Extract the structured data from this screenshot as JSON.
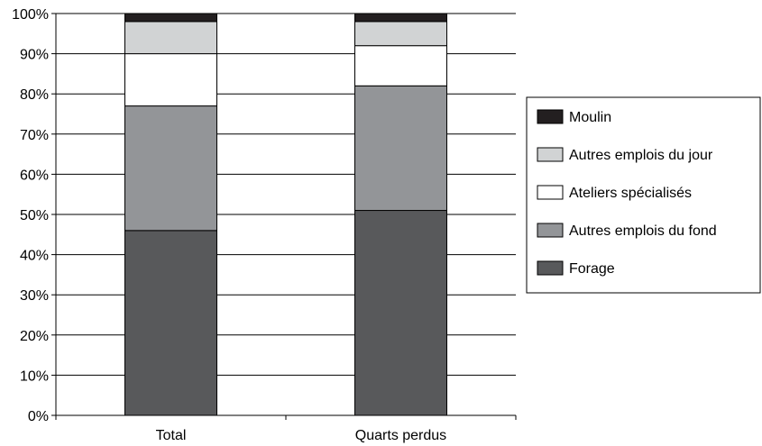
{
  "chart_data": {
    "type": "bar",
    "stacked": true,
    "percent": true,
    "categories": [
      "Total",
      "Quarts perdus"
    ],
    "series": [
      {
        "name": "Forage",
        "values": [
          46,
          51
        ],
        "color": "#58595b"
      },
      {
        "name": "Autres emplois du fond",
        "values": [
          31,
          31
        ],
        "color": "#939598"
      },
      {
        "name": "Ateliers spécialisés",
        "values": [
          13,
          10
        ],
        "color": "#ffffff"
      },
      {
        "name": "Autres emplois du jour",
        "values": [
          8,
          6
        ],
        "color": "#d1d3d4"
      },
      {
        "name": "Moulin",
        "values": [
          2,
          2
        ],
        "color": "#231f20"
      }
    ],
    "ylim": [
      0,
      100
    ],
    "yticks": [
      "0%",
      "10%",
      "20%",
      "30%",
      "40%",
      "50%",
      "60%",
      "70%",
      "80%",
      "90%",
      "100%"
    ],
    "grid": true,
    "legend_position": "right",
    "legend_order": [
      "Moulin",
      "Autres emplois du jour",
      "Ateliers spécialisés",
      "Autres emplois du fond",
      "Forage"
    ],
    "title": "",
    "xlabel": "",
    "ylabel": ""
  }
}
